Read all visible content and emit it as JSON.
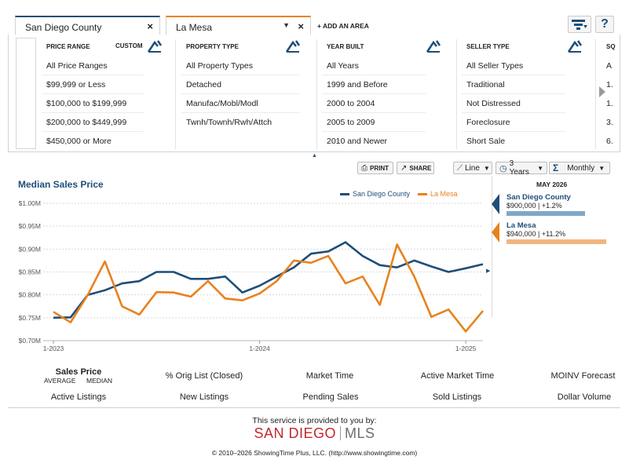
{
  "area_tabs": [
    {
      "label": "San Diego County",
      "accent": "#1f4e79"
    },
    {
      "label": "La Mesa",
      "accent": "#e8821e"
    }
  ],
  "add_area_label": "+ ADD AN AREA",
  "toolbar_icons": [
    "filter-icon",
    "help-icon"
  ],
  "help_label": "?",
  "filters": {
    "price_range": {
      "heading": "PRICE RANGE",
      "custom_label": "CUSTOM",
      "options": [
        "All Price Ranges",
        "$99,999 or Less",
        "$100,000 to $199,999",
        "$200,000 to $449,999",
        "$450,000 or More"
      ]
    },
    "property_type": {
      "heading": "PROPERTY TYPE",
      "options": [
        "All Property Types",
        "Detached",
        "Manufac/Mobl/Modl",
        "Twnh/Townh/Rwh/Attch"
      ]
    },
    "year_built": {
      "heading": "YEAR BUILT",
      "options": [
        "All Years",
        "1999 and Before",
        "2000 to 2004",
        "2005 to 2009",
        "2010 and Newer"
      ]
    },
    "seller_type": {
      "heading": "SELLER TYPE",
      "options": [
        "All Seller Types",
        "Traditional",
        "Not Distressed",
        "Foreclosure",
        "Short Sale"
      ]
    },
    "partial": {
      "heading": "SQ",
      "options": [
        "A",
        "1.",
        "1.",
        "3.",
        "6."
      ]
    }
  },
  "chart_toolbar": {
    "print_label": "PRINT",
    "share_label": "SHARE",
    "chart_type": "Line",
    "range": "3 Years",
    "sigma": "Σ",
    "period": "Monthly"
  },
  "chart_title": "Median Sales Price",
  "side_panel": {
    "month": "MAY 2026",
    "entries": [
      {
        "name": "San Diego County",
        "value": "$900,000 | +1.2%",
        "bar_fraction": 0.74,
        "color": "#1f4e79",
        "bar_color": "#7fa7c7"
      },
      {
        "name": "La Mesa",
        "value": "$940,000 | +11.2%",
        "bar_fraction": 0.94,
        "color": "#e8821e",
        "bar_color": "#f3b580"
      }
    ]
  },
  "metrics_row1": [
    "Sales Price",
    "% Orig List (Closed)",
    "Market Time",
    "Active Market Time",
    "MOINV Forecast"
  ],
  "sales_price_subs": [
    "AVERAGE",
    "MEDIAN"
  ],
  "metrics_row2": [
    "Active Listings",
    "New Listings",
    "Pending Sales",
    "Sold Listings",
    "Dollar Volume"
  ],
  "footer": {
    "provided": "This service is provided to you by:",
    "brand_left": "SAN DIEGO",
    "brand_right": "MLS",
    "copyright": "© 2010–2026 ShowingTime Plus, LLC. (http://www.showingtime.com)"
  },
  "chart_data": {
    "type": "line",
    "title": "Median Sales Price",
    "x_tick_labels": [
      "1-2023",
      "1-2024",
      "1-2025"
    ],
    "x_tick_index": [
      0,
      12,
      24
    ],
    "y_tick_labels": [
      "$0.70M",
      "$0.75M",
      "$0.80M",
      "$0.85M",
      "$0.90M",
      "$0.95M",
      "$1.00M"
    ],
    "ylim": [
      0.7,
      1.0
    ],
    "grid": true,
    "legend_position": "top-right",
    "series": [
      {
        "name": "San Diego County",
        "color": "#1f4e79",
        "values": [
          0.75,
          0.751,
          0.8,
          0.81,
          0.825,
          0.83,
          0.85,
          0.85,
          0.835,
          0.835,
          0.84,
          0.805,
          0.82,
          0.84,
          0.86,
          0.89,
          0.895,
          0.915,
          0.885,
          0.865,
          0.86,
          0.875,
          0.862,
          0.85,
          0.858,
          0.867
        ]
      },
      {
        "name": "La Mesa",
        "color": "#e8821e",
        "values": [
          0.763,
          0.74,
          0.8,
          0.873,
          0.775,
          0.757,
          0.806,
          0.805,
          0.796,
          0.83,
          0.792,
          0.788,
          0.803,
          0.83,
          0.875,
          0.87,
          0.885,
          0.825,
          0.84,
          0.778,
          0.91,
          0.84,
          0.752,
          0.768,
          0.72,
          0.765
        ]
      }
    ]
  }
}
